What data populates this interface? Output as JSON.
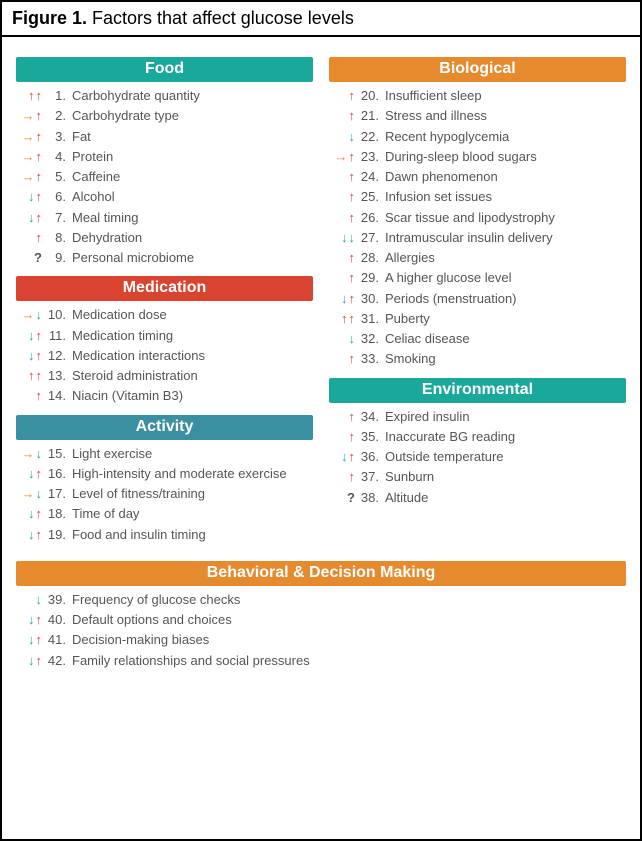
{
  "figure": {
    "label": "Figure 1.",
    "title": "Factors that affect glucose levels"
  },
  "arrowColors": {
    "up": "#d9432f",
    "down": "#2aa7a0",
    "right": "#e68a2e",
    "question": "#555555"
  },
  "sections": {
    "food": {
      "title": "Food",
      "headerColor": "#1aa89a",
      "items": [
        {
          "n": 1,
          "arrows": [
            "up",
            "up"
          ],
          "label": "Carbohydrate quantity"
        },
        {
          "n": 2,
          "arrows": [
            "right",
            "up"
          ],
          "label": "Carbohydrate type"
        },
        {
          "n": 3,
          "arrows": [
            "right",
            "up"
          ],
          "label": "Fat"
        },
        {
          "n": 4,
          "arrows": [
            "right",
            "up"
          ],
          "label": "Protein"
        },
        {
          "n": 5,
          "arrows": [
            "right",
            "up"
          ],
          "label": "Caffeine"
        },
        {
          "n": 6,
          "arrows": [
            "down",
            "up"
          ],
          "label": "Alcohol"
        },
        {
          "n": 7,
          "arrows": [
            "down",
            "up"
          ],
          "label": "Meal timing"
        },
        {
          "n": 8,
          "arrows": [
            "up"
          ],
          "label": "Dehydration"
        },
        {
          "n": 9,
          "arrows": [
            "question"
          ],
          "label": "Personal microbiome"
        }
      ]
    },
    "medication": {
      "title": "Medication",
      "headerColor": "#d9432f",
      "items": [
        {
          "n": 10,
          "arrows": [
            "right",
            "down"
          ],
          "label": "Medication dose"
        },
        {
          "n": 11,
          "arrows": [
            "down",
            "up"
          ],
          "label": "Medication timing"
        },
        {
          "n": 12,
          "arrows": [
            "down",
            "up"
          ],
          "label": "Medication interactions"
        },
        {
          "n": 13,
          "arrows": [
            "up",
            "up"
          ],
          "label": "Steroid administration"
        },
        {
          "n": 14,
          "arrows": [
            "up"
          ],
          "label": "Niacin (Vitamin B3)"
        }
      ]
    },
    "activity": {
      "title": "Activity",
      "headerColor": "#3a8fa0",
      "items": [
        {
          "n": 15,
          "arrows": [
            "right",
            "down"
          ],
          "label": "Light exercise"
        },
        {
          "n": 16,
          "arrows": [
            "down",
            "up"
          ],
          "label": "High-intensity and moderate exercise"
        },
        {
          "n": 17,
          "arrows": [
            "right",
            "down"
          ],
          "label": "Level of fitness/training"
        },
        {
          "n": 18,
          "arrows": [
            "down",
            "up"
          ],
          "label": "Time of day"
        },
        {
          "n": 19,
          "arrows": [
            "down",
            "up"
          ],
          "label": "Food and insulin timing"
        }
      ]
    },
    "biological": {
      "title": "Biological",
      "headerColor": "#e68a2e",
      "items": [
        {
          "n": 20,
          "arrows": [
            "up"
          ],
          "label": "Insufficient sleep"
        },
        {
          "n": 21,
          "arrows": [
            "up"
          ],
          "label": "Stress and illness"
        },
        {
          "n": 22,
          "arrows": [
            "down"
          ],
          "label": "Recent hypoglycemia"
        },
        {
          "n": 23,
          "arrows": [
            "right",
            "up"
          ],
          "label": "During-sleep blood sugars"
        },
        {
          "n": 24,
          "arrows": [
            "up"
          ],
          "label": "Dawn phenomenon"
        },
        {
          "n": 25,
          "arrows": [
            "up"
          ],
          "label": "Infusion set issues"
        },
        {
          "n": 26,
          "arrows": [
            "up"
          ],
          "label": "Scar tissue and lipodystrophy"
        },
        {
          "n": 27,
          "arrows": [
            "down",
            "down"
          ],
          "label": "Intramuscular insulin delivery"
        },
        {
          "n": 28,
          "arrows": [
            "up"
          ],
          "label": "Allergies"
        },
        {
          "n": 29,
          "arrows": [
            "up"
          ],
          "label": "A higher glucose level"
        },
        {
          "n": 30,
          "arrows": [
            "down",
            "up"
          ],
          "label": "Periods (menstruation)"
        },
        {
          "n": 31,
          "arrows": [
            "up",
            "up"
          ],
          "label": "Puberty"
        },
        {
          "n": 32,
          "arrows": [
            "down"
          ],
          "label": "Celiac disease"
        },
        {
          "n": 33,
          "arrows": [
            "up"
          ],
          "label": "Smoking"
        }
      ]
    },
    "environmental": {
      "title": "Environmental",
      "headerColor": "#1aa89a",
      "items": [
        {
          "n": 34,
          "arrows": [
            "up"
          ],
          "label": "Expired insulin"
        },
        {
          "n": 35,
          "arrows": [
            "up"
          ],
          "label": "Inaccurate BG reading"
        },
        {
          "n": 36,
          "arrows": [
            "down",
            "up"
          ],
          "label": "Outside temperature"
        },
        {
          "n": 37,
          "arrows": [
            "up"
          ],
          "label": "Sunburn"
        },
        {
          "n": 38,
          "arrows": [
            "question"
          ],
          "label": "Altitude"
        }
      ]
    },
    "behavioral": {
      "title": "Behavioral & Decision Making",
      "headerColor": "#e68a2e",
      "items": [
        {
          "n": 39,
          "arrows": [
            "down"
          ],
          "label": "Frequency of glucose checks"
        },
        {
          "n": 40,
          "arrows": [
            "down",
            "up"
          ],
          "label": "Default options and choices"
        },
        {
          "n": 41,
          "arrows": [
            "down",
            "up"
          ],
          "label": "Decision-making biases"
        },
        {
          "n": 42,
          "arrows": [
            "down",
            "up"
          ],
          "label": "Family relationships and social pressures"
        }
      ]
    }
  },
  "layout": {
    "leftColumn": [
      "food",
      "medication",
      "activity"
    ],
    "rightColumn": [
      "biological",
      "environmental"
    ],
    "fullWidth": [
      "behavioral"
    ]
  }
}
